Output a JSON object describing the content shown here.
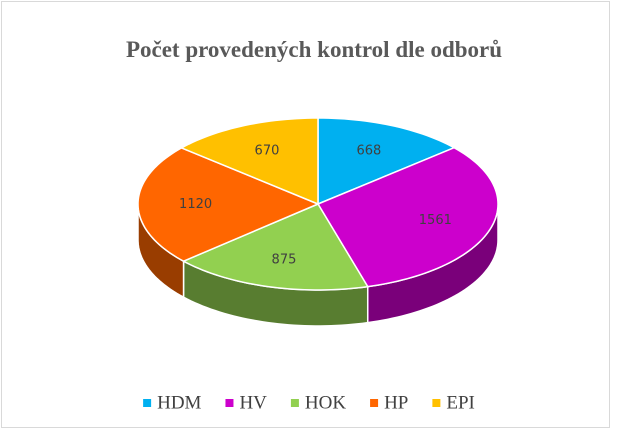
{
  "chart_data": {
    "type": "pie3d",
    "title": "Počet provedených kontrol dle odborů",
    "categories": [
      "HDM",
      "HV",
      "HOK",
      "HP",
      "EPI"
    ],
    "values": [
      668,
      1561,
      875,
      1120,
      670
    ],
    "colors": [
      "#00b0f0",
      "#cc00cc",
      "#92d050",
      "#ff6600",
      "#ffc000"
    ],
    "legend": "bottom"
  }
}
